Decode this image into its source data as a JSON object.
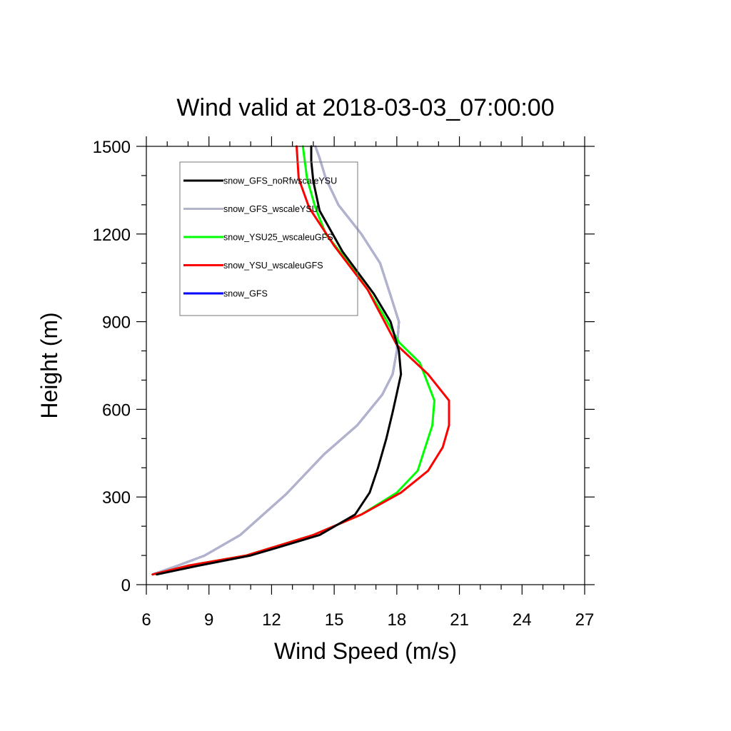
{
  "chart_data": {
    "type": "line",
    "title": "Wind valid at 2018-03-03_07:00:00",
    "xlabel": "Wind Speed (m/s)",
    "ylabel": "Height (m)",
    "xlim": [
      6,
      27
    ],
    "ylim": [
      0,
      1500
    ],
    "xticks": [
      6,
      9,
      12,
      15,
      18,
      21,
      24,
      27
    ],
    "yticks": [
      0,
      300,
      600,
      900,
      1200,
      1500
    ],
    "grid": false,
    "legend_position": "top-left",
    "series": [
      {
        "name": "snow_GFS_noRfwscaleYSU",
        "color": "#000000",
        "points": [
          [
            6.5,
            35
          ],
          [
            8.5,
            65
          ],
          [
            11.0,
            100
          ],
          [
            12.2,
            125
          ],
          [
            14.3,
            170
          ],
          [
            16.0,
            240
          ],
          [
            16.7,
            315
          ],
          [
            17.1,
            400
          ],
          [
            17.5,
            500
          ],
          [
            17.8,
            590
          ],
          [
            18.0,
            655
          ],
          [
            18.2,
            720
          ],
          [
            18.1,
            800
          ],
          [
            17.7,
            900
          ],
          [
            16.9,
            995
          ],
          [
            15.4,
            1140
          ],
          [
            14.3,
            1280
          ],
          [
            14.0,
            1380
          ],
          [
            13.9,
            1450
          ],
          [
            13.9,
            1500
          ]
        ]
      },
      {
        "name": "snow_GFS_wscaleYSU",
        "color": "#b4b4c8",
        "points": [
          [
            6.3,
            35
          ],
          [
            7.5,
            65
          ],
          [
            8.8,
            100
          ],
          [
            10.5,
            170
          ],
          [
            12.7,
            310
          ],
          [
            14.5,
            445
          ],
          [
            16.1,
            545
          ],
          [
            17.3,
            650
          ],
          [
            17.8,
            720
          ],
          [
            18.0,
            800
          ],
          [
            18.1,
            900
          ],
          [
            17.7,
            990
          ],
          [
            17.2,
            1100
          ],
          [
            16.3,
            1200
          ],
          [
            15.2,
            1300
          ],
          [
            14.6,
            1390
          ],
          [
            14.3,
            1460
          ],
          [
            14.1,
            1500
          ]
        ]
      },
      {
        "name": "snow_YSU25_wscaleuGFS",
        "color": "#00ff00",
        "points": [
          [
            6.3,
            35
          ],
          [
            8.0,
            65
          ],
          [
            10.8,
            100
          ],
          [
            14.0,
            170
          ],
          [
            16.3,
            240
          ],
          [
            18.0,
            315
          ],
          [
            19.0,
            390
          ],
          [
            19.7,
            545
          ],
          [
            19.8,
            630
          ],
          [
            19.1,
            760
          ],
          [
            18.1,
            830
          ],
          [
            17.3,
            930
          ],
          [
            16.6,
            1010
          ],
          [
            15.6,
            1110
          ],
          [
            14.6,
            1200
          ],
          [
            14.1,
            1290
          ],
          [
            13.7,
            1390
          ],
          [
            13.5,
            1500
          ]
        ]
      },
      {
        "name": "snow_YSU_wscaleuGFS",
        "color": "#ff0000",
        "points": [
          [
            6.3,
            35
          ],
          [
            8.0,
            65
          ],
          [
            10.8,
            100
          ],
          [
            14.0,
            170
          ],
          [
            16.3,
            240
          ],
          [
            18.2,
            315
          ],
          [
            19.5,
            390
          ],
          [
            20.2,
            470
          ],
          [
            20.5,
            545
          ],
          [
            20.5,
            630
          ],
          [
            19.5,
            720
          ],
          [
            18.0,
            820
          ],
          [
            16.6,
            1010
          ],
          [
            15.0,
            1160
          ],
          [
            13.8,
            1290
          ],
          [
            13.3,
            1390
          ],
          [
            13.2,
            1500
          ]
        ]
      },
      {
        "name": "snow_GFS",
        "color": "#0000ff",
        "points": [
          [
            6.3,
            35
          ],
          [
            7.5,
            65
          ],
          [
            8.8,
            100
          ],
          [
            10.5,
            170
          ],
          [
            12.7,
            310
          ],
          [
            14.5,
            445
          ],
          [
            16.1,
            545
          ],
          [
            17.3,
            650
          ],
          [
            17.8,
            720
          ],
          [
            18.0,
            800
          ],
          [
            18.1,
            900
          ],
          [
            17.7,
            990
          ],
          [
            17.2,
            1100
          ],
          [
            16.3,
            1200
          ],
          [
            15.2,
            1300
          ],
          [
            14.6,
            1390
          ],
          [
            14.3,
            1460
          ],
          [
            14.1,
            1500
          ]
        ]
      }
    ],
    "draw_order": [
      4,
      1,
      2,
      3,
      0
    ]
  }
}
